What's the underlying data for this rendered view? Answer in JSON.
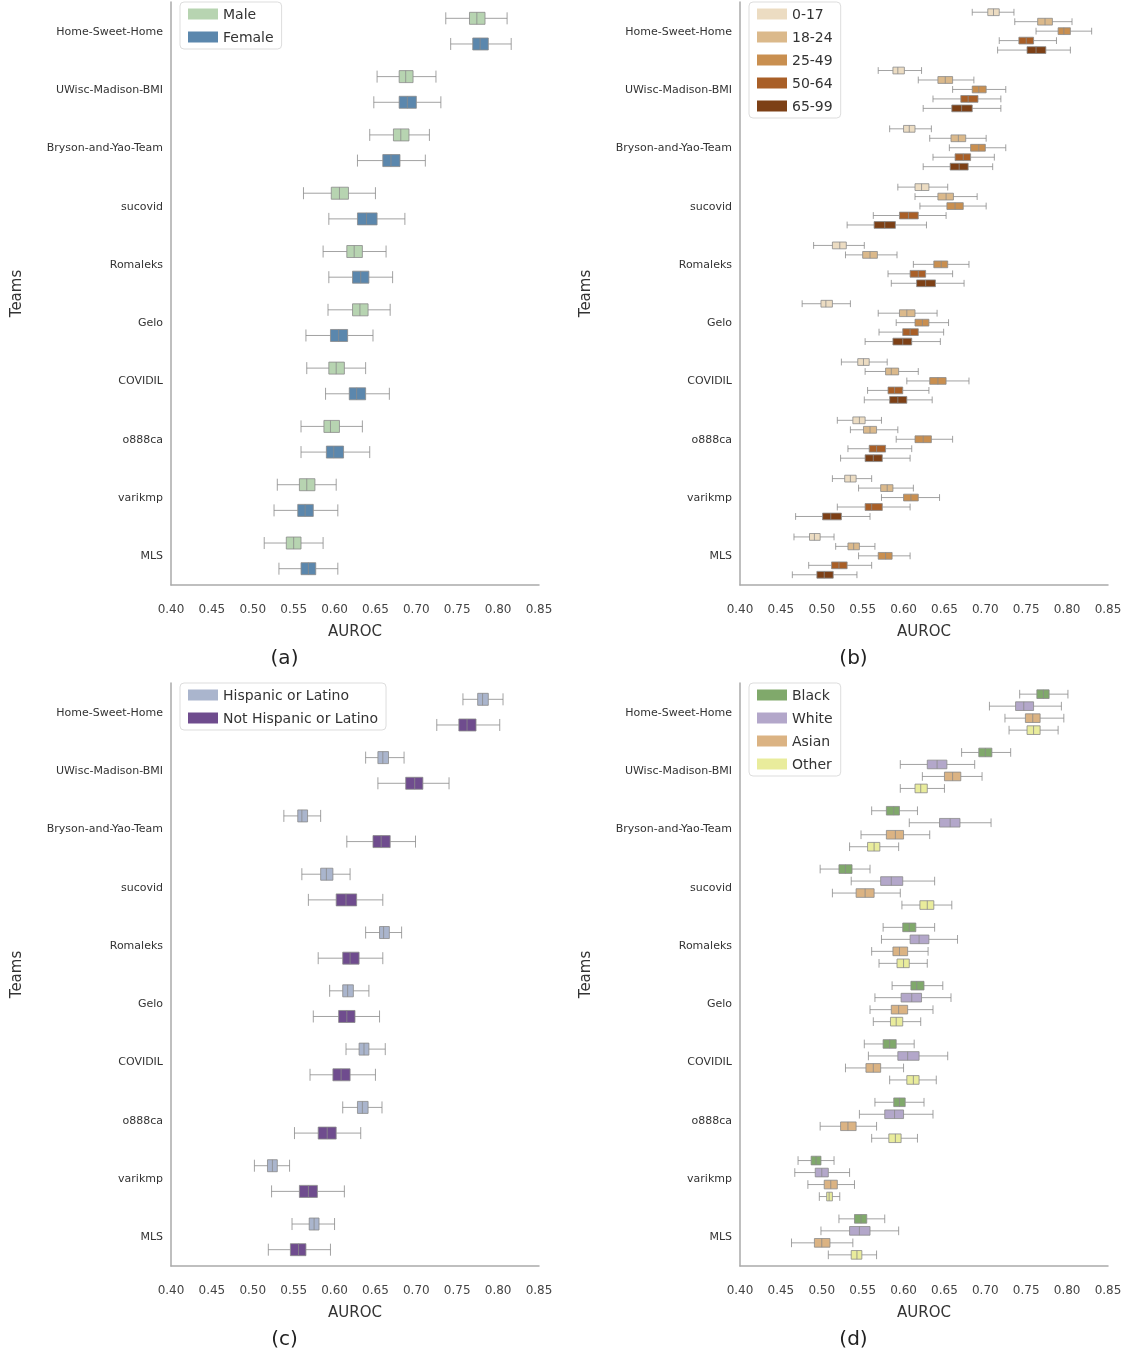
{
  "chart_data": [
    {
      "type": "box",
      "orientation": "horizontal",
      "xlabel": "AUROC",
      "ylabel": "Teams",
      "legend": "top left",
      "annotations": [
        "(a)"
      ],
      "categories": [
        "Home-Sweet-Home",
        "UWisc-Madison-BMI",
        "Bryson-and-Yao-Team",
        "sucovid",
        "Romaleks",
        "Gelo",
        "COVIDIL",
        "o888ca",
        "varikmp",
        "MLS"
      ],
      "xlim": [
        0.4,
        0.85
      ],
      "xticks": [
        {
          "value": 0.4,
          "label": "0.40"
        },
        {
          "value": 0.45,
          "label": "0.45"
        },
        {
          "value": 0.5,
          "label": "0.50"
        },
        {
          "value": 0.55,
          "label": "0.55"
        },
        {
          "value": 0.6,
          "label": "0.60"
        },
        {
          "value": 0.65,
          "label": "0.65"
        },
        {
          "value": 0.7,
          "label": "0.70"
        },
        {
          "value": 0.75,
          "label": "0.75"
        },
        {
          "value": 0.8,
          "label": "0.80"
        },
        {
          "value": 0.85,
          "label": "0.85"
        }
      ],
      "series": [
        {
          "name": "Male",
          "color": "#b7d4b1",
          "boxes": [
            {
              "low": 0.736,
              "q1": 0.765,
              "median": 0.774,
              "q3": 0.784,
              "high": 0.811
            },
            {
              "low": 0.652,
              "q1": 0.679,
              "median": 0.687,
              "q3": 0.696,
              "high": 0.724
            },
            {
              "low": 0.643,
              "q1": 0.672,
              "median": 0.681,
              "q3": 0.691,
              "high": 0.716
            },
            {
              "low": 0.562,
              "q1": 0.596,
              "median": 0.606,
              "q3": 0.617,
              "high": 0.65
            },
            {
              "low": 0.586,
              "q1": 0.615,
              "median": 0.624,
              "q3": 0.634,
              "high": 0.663
            },
            {
              "low": 0.592,
              "q1": 0.622,
              "median": 0.631,
              "q3": 0.641,
              "high": 0.668
            },
            {
              "low": 0.566,
              "q1": 0.593,
              "median": 0.602,
              "q3": 0.612,
              "high": 0.638
            },
            {
              "low": 0.559,
              "q1": 0.587,
              "median": 0.595,
              "q3": 0.606,
              "high": 0.634
            },
            {
              "low": 0.53,
              "q1": 0.557,
              "median": 0.566,
              "q3": 0.576,
              "high": 0.602
            },
            {
              "low": 0.514,
              "q1": 0.541,
              "median": 0.55,
              "q3": 0.559,
              "high": 0.586
            }
          ]
        },
        {
          "name": "Female",
          "color": "#5b87ad",
          "boxes": [
            {
              "low": 0.742,
              "q1": 0.769,
              "median": 0.778,
              "q3": 0.788,
              "high": 0.816
            },
            {
              "low": 0.648,
              "q1": 0.679,
              "median": 0.689,
              "q3": 0.7,
              "high": 0.73
            },
            {
              "low": 0.628,
              "q1": 0.659,
              "median": 0.669,
              "q3": 0.68,
              "high": 0.711
            },
            {
              "low": 0.593,
              "q1": 0.628,
              "median": 0.639,
              "q3": 0.652,
              "high": 0.686
            },
            {
              "low": 0.593,
              "q1": 0.622,
              "median": 0.632,
              "q3": 0.642,
              "high": 0.671
            },
            {
              "low": 0.565,
              "q1": 0.595,
              "median": 0.605,
              "q3": 0.616,
              "high": 0.647
            },
            {
              "low": 0.589,
              "q1": 0.618,
              "median": 0.627,
              "q3": 0.638,
              "high": 0.667
            },
            {
              "low": 0.559,
              "q1": 0.59,
              "median": 0.599,
              "q3": 0.611,
              "high": 0.643
            },
            {
              "low": 0.526,
              "q1": 0.555,
              "median": 0.564,
              "q3": 0.574,
              "high": 0.604
            },
            {
              "low": 0.532,
              "q1": 0.559,
              "median": 0.568,
              "q3": 0.577,
              "high": 0.604
            }
          ]
        }
      ]
    },
    {
      "type": "box",
      "orientation": "horizontal",
      "xlabel": "AUROC",
      "ylabel": "Teams",
      "legend": "top left",
      "annotations": [
        "(b)"
      ],
      "categories": [
        "Home-Sweet-Home",
        "UWisc-Madison-BMI",
        "Bryson-and-Yao-Team",
        "sucovid",
        "Romaleks",
        "Gelo",
        "COVIDIL",
        "o888ca",
        "varikmp",
        "MLS"
      ],
      "xlim": [
        0.4,
        0.85
      ],
      "xticks": [
        {
          "value": 0.4,
          "label": "0.40"
        },
        {
          "value": 0.45,
          "label": "0.45"
        },
        {
          "value": 0.5,
          "label": "0.50"
        },
        {
          "value": 0.55,
          "label": "0.55"
        },
        {
          "value": 0.6,
          "label": "0.60"
        },
        {
          "value": 0.65,
          "label": "0.65"
        },
        {
          "value": 0.7,
          "label": "0.70"
        },
        {
          "value": 0.75,
          "label": "0.75"
        },
        {
          "value": 0.8,
          "label": "0.80"
        },
        {
          "value": 0.85,
          "label": "0.85"
        }
      ],
      "series": [
        {
          "name": "0-17",
          "color": "#ecdcc2",
          "boxes": [
            {
              "low": 0.684,
              "q1": 0.703,
              "median": 0.71,
              "q3": 0.717,
              "high": 0.735
            },
            {
              "low": 0.569,
              "q1": 0.587,
              "median": 0.593,
              "q3": 0.601,
              "high": 0.622
            },
            {
              "low": 0.583,
              "q1": 0.6,
              "median": 0.607,
              "q3": 0.614,
              "high": 0.634
            },
            {
              "low": 0.593,
              "q1": 0.614,
              "median": 0.622,
              "q3": 0.631,
              "high": 0.654
            },
            {
              "low": 0.49,
              "q1": 0.513,
              "median": 0.522,
              "q3": 0.53,
              "high": 0.552
            },
            {
              "low": 0.476,
              "q1": 0.499,
              "median": 0.505,
              "q3": 0.513,
              "high": 0.535
            },
            {
              "low": 0.524,
              "q1": 0.544,
              "median": 0.551,
              "q3": 0.558,
              "high": 0.58
            },
            {
              "low": 0.519,
              "q1": 0.538,
              "median": 0.546,
              "q3": 0.553,
              "high": 0.573
            },
            {
              "low": 0.513,
              "q1": 0.528,
              "median": 0.535,
              "q3": 0.542,
              "high": 0.561
            },
            {
              "low": 0.466,
              "q1": 0.485,
              "median": 0.491,
              "q3": 0.498,
              "high": 0.515
            }
          ]
        },
        {
          "name": "18-24",
          "color": "#dbb98b",
          "boxes": [
            {
              "low": 0.736,
              "q1": 0.764,
              "median": 0.773,
              "q3": 0.782,
              "high": 0.806
            },
            {
              "low": 0.618,
              "q1": 0.642,
              "median": 0.651,
              "q3": 0.66,
              "high": 0.686
            },
            {
              "low": 0.632,
              "q1": 0.658,
              "median": 0.667,
              "q3": 0.676,
              "high": 0.701
            },
            {
              "low": 0.614,
              "q1": 0.642,
              "median": 0.652,
              "q3": 0.661,
              "high": 0.69
            },
            {
              "low": 0.529,
              "q1": 0.55,
              "median": 0.559,
              "q3": 0.568,
              "high": 0.592
            },
            {
              "low": 0.569,
              "q1": 0.595,
              "median": 0.604,
              "q3": 0.614,
              "high": 0.641
            },
            {
              "low": 0.553,
              "q1": 0.578,
              "median": 0.585,
              "q3": 0.594,
              "high": 0.618
            },
            {
              "low": 0.535,
              "q1": 0.551,
              "median": 0.559,
              "q3": 0.567,
              "high": 0.593
            },
            {
              "low": 0.545,
              "q1": 0.572,
              "median": 0.58,
              "q3": 0.587,
              "high": 0.612
            },
            {
              "low": 0.517,
              "q1": 0.532,
              "median": 0.539,
              "q3": 0.546,
              "high": 0.565
            }
          ]
        },
        {
          "name": "25-49",
          "color": "#c98f50",
          "boxes": [
            {
              "low": 0.762,
              "q1": 0.789,
              "median": 0.796,
              "q3": 0.804,
              "high": 0.83
            },
            {
              "low": 0.66,
              "q1": 0.684,
              "median": 0.692,
              "q3": 0.701,
              "high": 0.725
            },
            {
              "low": 0.656,
              "q1": 0.682,
              "median": 0.692,
              "q3": 0.7,
              "high": 0.725
            },
            {
              "low": 0.62,
              "q1": 0.653,
              "median": 0.663,
              "q3": 0.673,
              "high": 0.701
            },
            {
              "low": 0.612,
              "q1": 0.637,
              "median": 0.646,
              "q3": 0.654,
              "high": 0.68
            },
            {
              "low": 0.591,
              "q1": 0.614,
              "median": 0.623,
              "q3": 0.631,
              "high": 0.655
            },
            {
              "low": 0.604,
              "q1": 0.632,
              "median": 0.642,
              "q3": 0.652,
              "high": 0.68
            },
            {
              "low": 0.591,
              "q1": 0.614,
              "median": 0.624,
              "q3": 0.634,
              "high": 0.66
            },
            {
              "low": 0.573,
              "q1": 0.6,
              "median": 0.609,
              "q3": 0.618,
              "high": 0.644
            },
            {
              "low": 0.545,
              "q1": 0.569,
              "median": 0.578,
              "q3": 0.586,
              "high": 0.608
            }
          ]
        },
        {
          "name": "50-64",
          "color": "#a95f27",
          "boxes": [
            {
              "low": 0.717,
              "q1": 0.741,
              "median": 0.75,
              "q3": 0.759,
              "high": 0.787
            },
            {
              "low": 0.636,
              "q1": 0.67,
              "median": 0.679,
              "q3": 0.691,
              "high": 0.719
            },
            {
              "low": 0.636,
              "q1": 0.663,
              "median": 0.673,
              "q3": 0.682,
              "high": 0.711
            },
            {
              "low": 0.563,
              "q1": 0.595,
              "median": 0.606,
              "q3": 0.618,
              "high": 0.652
            },
            {
              "low": 0.581,
              "q1": 0.608,
              "median": 0.618,
              "q3": 0.627,
              "high": 0.66
            },
            {
              "low": 0.57,
              "q1": 0.599,
              "median": 0.608,
              "q3": 0.618,
              "high": 0.649
            },
            {
              "low": 0.556,
              "q1": 0.581,
              "median": 0.589,
              "q3": 0.599,
              "high": 0.631
            },
            {
              "low": 0.532,
              "q1": 0.558,
              "median": 0.567,
              "q3": 0.578,
              "high": 0.61
            },
            {
              "low": 0.519,
              "q1": 0.553,
              "median": 0.561,
              "q3": 0.574,
              "high": 0.608
            },
            {
              "low": 0.484,
              "q1": 0.512,
              "median": 0.521,
              "q3": 0.531,
              "high": 0.561
            }
          ]
        },
        {
          "name": "65-99",
          "color": "#7d4016",
          "boxes": [
            {
              "low": 0.715,
              "q1": 0.751,
              "median": 0.762,
              "q3": 0.774,
              "high": 0.804
            },
            {
              "low": 0.624,
              "q1": 0.659,
              "median": 0.671,
              "q3": 0.684,
              "high": 0.719
            },
            {
              "low": 0.624,
              "q1": 0.657,
              "median": 0.668,
              "q3": 0.679,
              "high": 0.709
            },
            {
              "low": 0.531,
              "q1": 0.564,
              "median": 0.577,
              "q3": 0.59,
              "high": 0.628
            },
            {
              "low": 0.585,
              "q1": 0.616,
              "median": 0.627,
              "q3": 0.639,
              "high": 0.674
            },
            {
              "low": 0.553,
              "q1": 0.587,
              "median": 0.599,
              "q3": 0.61,
              "high": 0.645
            },
            {
              "low": 0.552,
              "q1": 0.583,
              "median": 0.593,
              "q3": 0.604,
              "high": 0.635
            },
            {
              "low": 0.523,
              "q1": 0.553,
              "median": 0.563,
              "q3": 0.574,
              "high": 0.608
            },
            {
              "low": 0.468,
              "q1": 0.501,
              "median": 0.511,
              "q3": 0.524,
              "high": 0.559
            },
            {
              "low": 0.464,
              "q1": 0.494,
              "median": 0.503,
              "q3": 0.514,
              "high": 0.543
            }
          ]
        }
      ]
    },
    {
      "type": "box",
      "orientation": "horizontal",
      "xlabel": "AUROC",
      "ylabel": "Teams",
      "legend": "top left",
      "annotations": [
        "(c)"
      ],
      "categories": [
        "Home-Sweet-Home",
        "UWisc-Madison-BMI",
        "Bryson-and-Yao-Team",
        "sucovid",
        "Romaleks",
        "Gelo",
        "COVIDIL",
        "o888ca",
        "varikmp",
        "MLS"
      ],
      "xlim": [
        0.4,
        0.85
      ],
      "xticks": [
        {
          "value": 0.4,
          "label": "0.40"
        },
        {
          "value": 0.45,
          "label": "0.45"
        },
        {
          "value": 0.5,
          "label": "0.50"
        },
        {
          "value": 0.55,
          "label": "0.55"
        },
        {
          "value": 0.6,
          "label": "0.60"
        },
        {
          "value": 0.65,
          "label": "0.65"
        },
        {
          "value": 0.7,
          "label": "0.70"
        },
        {
          "value": 0.75,
          "label": "0.75"
        },
        {
          "value": 0.8,
          "label": "0.80"
        },
        {
          "value": 0.85,
          "label": "0.85"
        }
      ],
      "series": [
        {
          "name": "Hispanic or Latino",
          "color": "#aab5cd",
          "boxes": [
            {
              "low": 0.757,
              "q1": 0.775,
              "median": 0.781,
              "q3": 0.788,
              "high": 0.806
            },
            {
              "low": 0.638,
              "q1": 0.653,
              "median": 0.659,
              "q3": 0.666,
              "high": 0.685
            },
            {
              "low": 0.538,
              "q1": 0.555,
              "median": 0.56,
              "q3": 0.567,
              "high": 0.583
            },
            {
              "low": 0.56,
              "q1": 0.583,
              "median": 0.59,
              "q3": 0.598,
              "high": 0.619
            },
            {
              "low": 0.638,
              "q1": 0.655,
              "median": 0.66,
              "q3": 0.667,
              "high": 0.682
            },
            {
              "low": 0.594,
              "q1": 0.61,
              "median": 0.616,
              "q3": 0.623,
              "high": 0.642
            },
            {
              "low": 0.614,
              "q1": 0.63,
              "median": 0.636,
              "q3": 0.642,
              "high": 0.662
            },
            {
              "low": 0.61,
              "q1": 0.628,
              "median": 0.634,
              "q3": 0.641,
              "high": 0.658
            },
            {
              "low": 0.502,
              "q1": 0.518,
              "median": 0.524,
              "q3": 0.53,
              "high": 0.545
            },
            {
              "low": 0.548,
              "q1": 0.569,
              "median": 0.575,
              "q3": 0.581,
              "high": 0.6
            }
          ]
        },
        {
          "name": "Not Hispanic or Latino",
          "color": "#6f4c8e",
          "boxes": [
            {
              "low": 0.725,
              "q1": 0.752,
              "median": 0.762,
              "q3": 0.773,
              "high": 0.802
            },
            {
              "low": 0.653,
              "q1": 0.687,
              "median": 0.698,
              "q3": 0.708,
              "high": 0.74
            },
            {
              "low": 0.615,
              "q1": 0.647,
              "median": 0.657,
              "q3": 0.668,
              "high": 0.699
            },
            {
              "low": 0.568,
              "q1": 0.602,
              "median": 0.614,
              "q3": 0.627,
              "high": 0.659
            },
            {
              "low": 0.58,
              "q1": 0.61,
              "median": 0.619,
              "q3": 0.63,
              "high": 0.659
            },
            {
              "low": 0.574,
              "q1": 0.605,
              "median": 0.615,
              "q3": 0.625,
              "high": 0.655
            },
            {
              "low": 0.57,
              "q1": 0.598,
              "median": 0.608,
              "q3": 0.619,
              "high": 0.65
            },
            {
              "low": 0.551,
              "q1": 0.58,
              "median": 0.591,
              "q3": 0.602,
              "high": 0.632
            },
            {
              "low": 0.523,
              "q1": 0.557,
              "median": 0.568,
              "q3": 0.579,
              "high": 0.612
            },
            {
              "low": 0.519,
              "q1": 0.546,
              "median": 0.556,
              "q3": 0.565,
              "high": 0.595
            }
          ]
        }
      ]
    },
    {
      "type": "box",
      "orientation": "horizontal",
      "xlabel": "AUROC",
      "ylabel": "Teams",
      "legend": "top left",
      "annotations": [
        "(d)"
      ],
      "categories": [
        "Home-Sweet-Home",
        "UWisc-Madison-BMI",
        "Bryson-and-Yao-Team",
        "sucovid",
        "Romaleks",
        "Gelo",
        "COVIDIL",
        "o888ca",
        "varikmp",
        "MLS"
      ],
      "xlim": [
        0.4,
        0.85
      ],
      "xticks": [
        {
          "value": 0.4,
          "label": "0.40"
        },
        {
          "value": 0.45,
          "label": "0.45"
        },
        {
          "value": 0.5,
          "label": "0.50"
        },
        {
          "value": 0.55,
          "label": "0.55"
        },
        {
          "value": 0.6,
          "label": "0.60"
        },
        {
          "value": 0.65,
          "label": "0.65"
        },
        {
          "value": 0.7,
          "label": "0.70"
        },
        {
          "value": 0.75,
          "label": "0.75"
        },
        {
          "value": 0.8,
          "label": "0.80"
        },
        {
          "value": 0.85,
          "label": "0.85"
        }
      ],
      "series": [
        {
          "name": "Black",
          "color": "#80a96b",
          "boxes": [
            {
              "low": 0.742,
              "q1": 0.763,
              "median": 0.771,
              "q3": 0.778,
              "high": 0.801
            },
            {
              "low": 0.671,
              "q1": 0.692,
              "median": 0.7,
              "q3": 0.708,
              "high": 0.731
            },
            {
              "low": 0.561,
              "q1": 0.579,
              "median": 0.588,
              "q3": 0.595,
              "high": 0.617
            },
            {
              "low": 0.498,
              "q1": 0.521,
              "median": 0.529,
              "q3": 0.537,
              "high": 0.559
            },
            {
              "low": 0.575,
              "q1": 0.599,
              "median": 0.607,
              "q3": 0.615,
              "high": 0.638
            },
            {
              "low": 0.586,
              "q1": 0.609,
              "median": 0.616,
              "q3": 0.625,
              "high": 0.648
            },
            {
              "low": 0.552,
              "q1": 0.575,
              "median": 0.583,
              "q3": 0.591,
              "high": 0.613
            },
            {
              "low": 0.565,
              "q1": 0.588,
              "median": 0.595,
              "q3": 0.602,
              "high": 0.625
            },
            {
              "low": 0.471,
              "q1": 0.487,
              "median": 0.493,
              "q3": 0.499,
              "high": 0.515
            },
            {
              "low": 0.521,
              "q1": 0.54,
              "median": 0.548,
              "q3": 0.555,
              "high": 0.577
            }
          ]
        },
        {
          "name": "White",
          "color": "#b3a7ca",
          "boxes": [
            {
              "low": 0.705,
              "q1": 0.737,
              "median": 0.747,
              "q3": 0.759,
              "high": 0.793
            },
            {
              "low": 0.596,
              "q1": 0.629,
              "median": 0.641,
              "q3": 0.653,
              "high": 0.687
            },
            {
              "low": 0.607,
              "q1": 0.644,
              "median": 0.657,
              "q3": 0.669,
              "high": 0.707
            },
            {
              "low": 0.536,
              "q1": 0.572,
              "median": 0.585,
              "q3": 0.599,
              "high": 0.638
            },
            {
              "low": 0.573,
              "q1": 0.608,
              "median": 0.619,
              "q3": 0.631,
              "high": 0.666
            },
            {
              "low": 0.565,
              "q1": 0.597,
              "median": 0.61,
              "q3": 0.622,
              "high": 0.658
            },
            {
              "low": 0.557,
              "q1": 0.593,
              "median": 0.605,
              "q3": 0.619,
              "high": 0.654
            },
            {
              "low": 0.546,
              "q1": 0.577,
              "median": 0.589,
              "q3": 0.6,
              "high": 0.636
            },
            {
              "low": 0.467,
              "q1": 0.492,
              "median": 0.5,
              "q3": 0.508,
              "high": 0.534
            },
            {
              "low": 0.499,
              "q1": 0.534,
              "median": 0.546,
              "q3": 0.559,
              "high": 0.594
            }
          ]
        },
        {
          "name": "Asian",
          "color": "#dbb383",
          "boxes": [
            {
              "low": 0.724,
              "q1": 0.749,
              "median": 0.758,
              "q3": 0.767,
              "high": 0.796
            },
            {
              "low": 0.623,
              "q1": 0.65,
              "median": 0.66,
              "q3": 0.67,
              "high": 0.696
            },
            {
              "low": 0.548,
              "q1": 0.579,
              "median": 0.59,
              "q3": 0.6,
              "high": 0.632
            },
            {
              "low": 0.513,
              "q1": 0.542,
              "median": 0.553,
              "q3": 0.564,
              "high": 0.596
            },
            {
              "low": 0.561,
              "q1": 0.587,
              "median": 0.595,
              "q3": 0.605,
              "high": 0.63
            },
            {
              "low": 0.559,
              "q1": 0.585,
              "median": 0.594,
              "q3": 0.605,
              "high": 0.636
            },
            {
              "low": 0.529,
              "q1": 0.554,
              "median": 0.563,
              "q3": 0.572,
              "high": 0.6
            },
            {
              "low": 0.498,
              "q1": 0.523,
              "median": 0.532,
              "q3": 0.542,
              "high": 0.567
            },
            {
              "low": 0.483,
              "q1": 0.503,
              "median": 0.511,
              "q3": 0.519,
              "high": 0.54
            },
            {
              "low": 0.463,
              "q1": 0.491,
              "median": 0.5,
              "q3": 0.51,
              "high": 0.538
            }
          ]
        },
        {
          "name": "Other",
          "color": "#e9ec9c",
          "boxes": [
            {
              "low": 0.729,
              "q1": 0.751,
              "median": 0.759,
              "q3": 0.767,
              "high": 0.789
            },
            {
              "low": 0.596,
              "q1": 0.614,
              "median": 0.621,
              "q3": 0.629,
              "high": 0.65
            },
            {
              "low": 0.534,
              "q1": 0.556,
              "median": 0.564,
              "q3": 0.571,
              "high": 0.594
            },
            {
              "low": 0.598,
              "q1": 0.62,
              "median": 0.629,
              "q3": 0.637,
              "high": 0.659
            },
            {
              "low": 0.57,
              "q1": 0.592,
              "median": 0.6,
              "q3": 0.607,
              "high": 0.629
            },
            {
              "low": 0.563,
              "q1": 0.584,
              "median": 0.591,
              "q3": 0.599,
              "high": 0.621
            },
            {
              "low": 0.583,
              "q1": 0.604,
              "median": 0.612,
              "q3": 0.619,
              "high": 0.64
            },
            {
              "low": 0.561,
              "q1": 0.582,
              "median": 0.59,
              "q3": 0.597,
              "high": 0.617
            },
            {
              "low": 0.497,
              "q1": 0.506,
              "median": 0.509,
              "q3": 0.513,
              "high": 0.522
            },
            {
              "low": 0.508,
              "q1": 0.536,
              "median": 0.543,
              "q3": 0.549,
              "high": 0.567
            }
          ]
        }
      ]
    }
  ]
}
